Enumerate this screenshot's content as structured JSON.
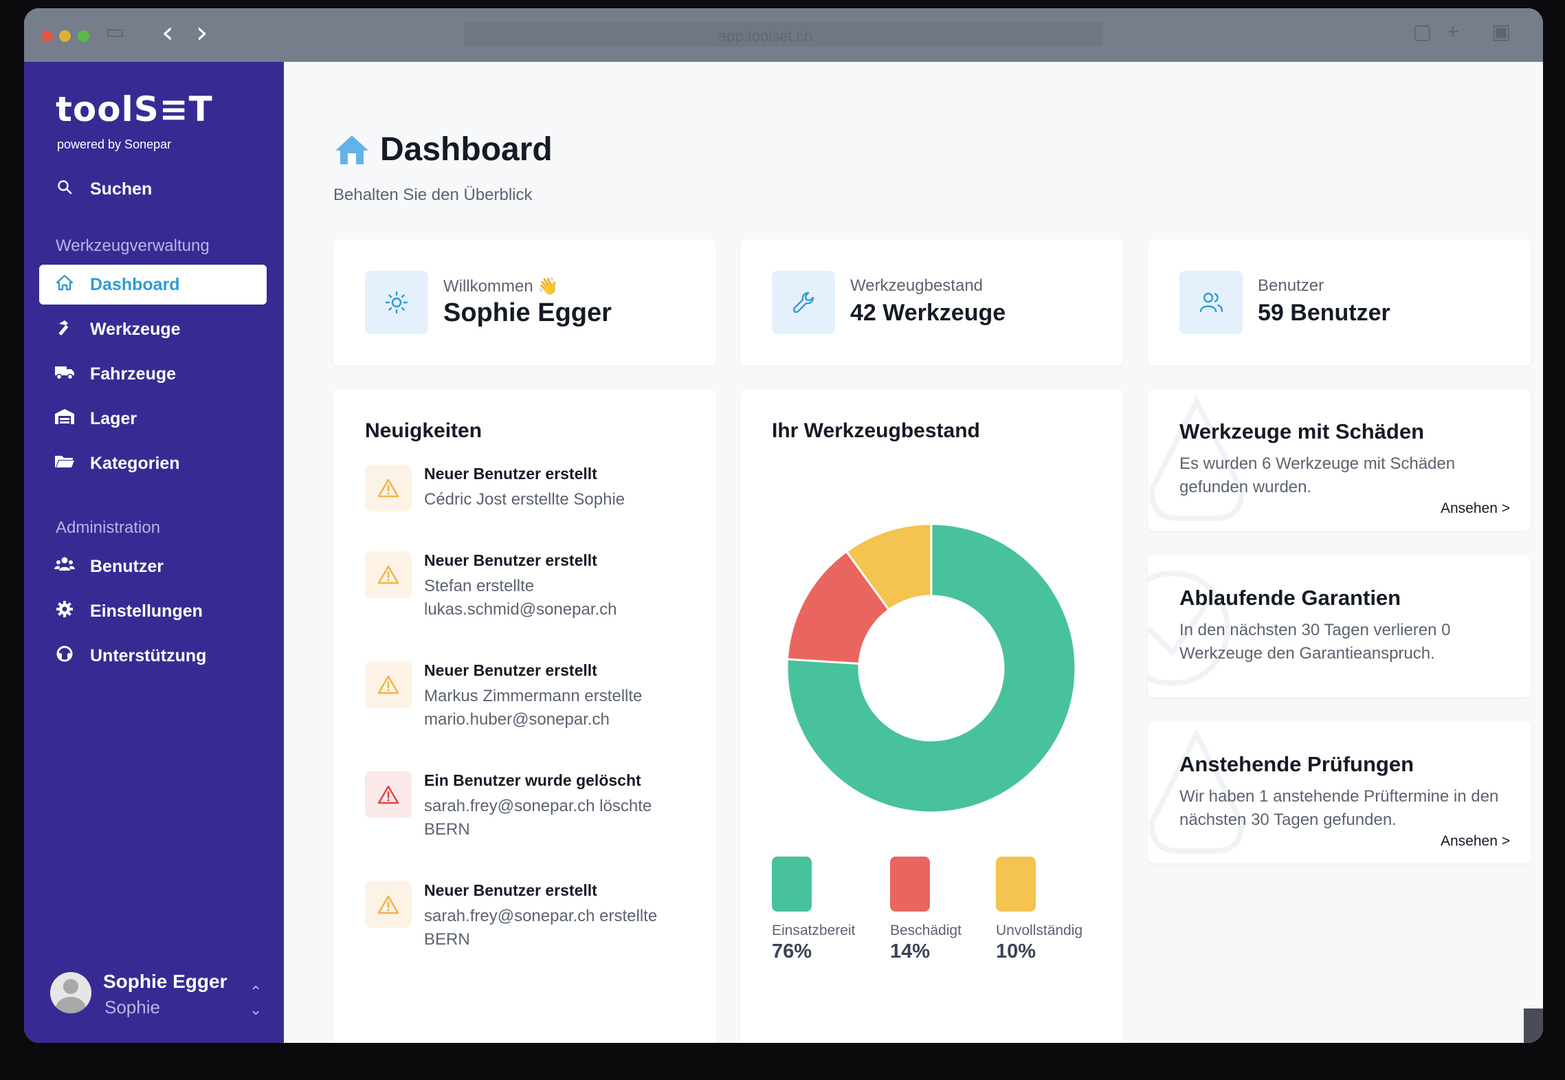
{
  "browser": {
    "url": "app.toolset.ch",
    "back_icon": "chevron-left-icon",
    "forward_icon": "chevron-right-icon"
  },
  "sidebar": {
    "logo": "toolS≡T",
    "logo_sub": "powered by Sonepar",
    "search_label": "Suchen",
    "section_tools": "Werkzeugverwaltung",
    "items": [
      {
        "label": "Dashboard",
        "icon": "home-icon",
        "active": true
      },
      {
        "label": "Werkzeuge",
        "icon": "hammer-icon"
      },
      {
        "label": "Fahrzeuge",
        "icon": "truck-icon"
      },
      {
        "label": "Lager",
        "icon": "warehouse-icon"
      },
      {
        "label": "Kategorien",
        "icon": "folder-icon"
      }
    ],
    "section_admin": "Administration",
    "admin_items": [
      {
        "label": "Benutzer",
        "icon": "users-icon"
      },
      {
        "label": "Einstellungen",
        "icon": "gear-icon"
      },
      {
        "label": "Unterstützung",
        "icon": "support-icon"
      }
    ],
    "user": {
      "name": "Sophie Egger",
      "sub": "Sophie"
    }
  },
  "header": {
    "title": "Dashboard",
    "subtitle": "Behalten Sie den Überblick"
  },
  "stats": [
    {
      "label": "Willkommen 👋",
      "value": "Sophie Egger",
      "icon": "sun-icon"
    },
    {
      "label": "Werkzeugbestand",
      "value": "42 Werkzeuge",
      "icon": "wrench-icon"
    },
    {
      "label": "Benutzer",
      "value": "59 Benutzer",
      "icon": "users-icon"
    }
  ],
  "news": {
    "title": "Neuigkeiten",
    "items": [
      {
        "title": "Neuer Benutzer erstellt",
        "text": "Cédric Jost erstellte Sophie",
        "level": "warning"
      },
      {
        "title": "Neuer Benutzer erstellt",
        "text": "Stefan erstellte lukas.schmid@sonepar.ch",
        "level": "warning"
      },
      {
        "title": "Neuer Benutzer erstellt",
        "text": "Markus Zimmermann erstellte mario.huber@sonepar.ch",
        "level": "warning"
      },
      {
        "title": "Ein Benutzer wurde gelöscht",
        "text": "sarah.frey@sonepar.ch löschte BERN",
        "level": "danger"
      },
      {
        "title": "Neuer Benutzer erstellt",
        "text": "sarah.frey@sonepar.ch erstellte BERN",
        "level": "warning"
      }
    ]
  },
  "inventory": {
    "title": "Ihr Werkzeugbestand"
  },
  "chart_data": {
    "type": "pie",
    "categories": [
      "Einsatzbereit",
      "Beschädigt",
      "Unvollständig"
    ],
    "values": [
      76,
      14,
      10
    ],
    "value_labels": [
      "76%",
      "14%",
      "10%"
    ],
    "colors": [
      "#48c19d",
      "#ea6560",
      "#f4c350"
    ],
    "donut": true,
    "legend": "bottom"
  },
  "info_cards": [
    {
      "title": "Werkzeuge mit Schäden",
      "text": "Es wurden 6 Werkzeuge mit Schäden gefunden wurden.",
      "link": "Ansehen >"
    },
    {
      "title": "Ablaufende Garantien",
      "text": "In den nächsten 30 Tagen verlieren 0 Werkzeuge den Garantieanspruch.",
      "link": ""
    },
    {
      "title": "Anstehende Prüfungen",
      "text": "Wir haben 1 anstehende Prüftermine in den nächsten 30 Tagen gefunden.",
      "link": "Ansehen >"
    }
  ],
  "colors": {
    "sidebar": "#372b93",
    "accent": "#2f9bd6",
    "warning": "#f0b64a",
    "danger": "#e04848"
  }
}
